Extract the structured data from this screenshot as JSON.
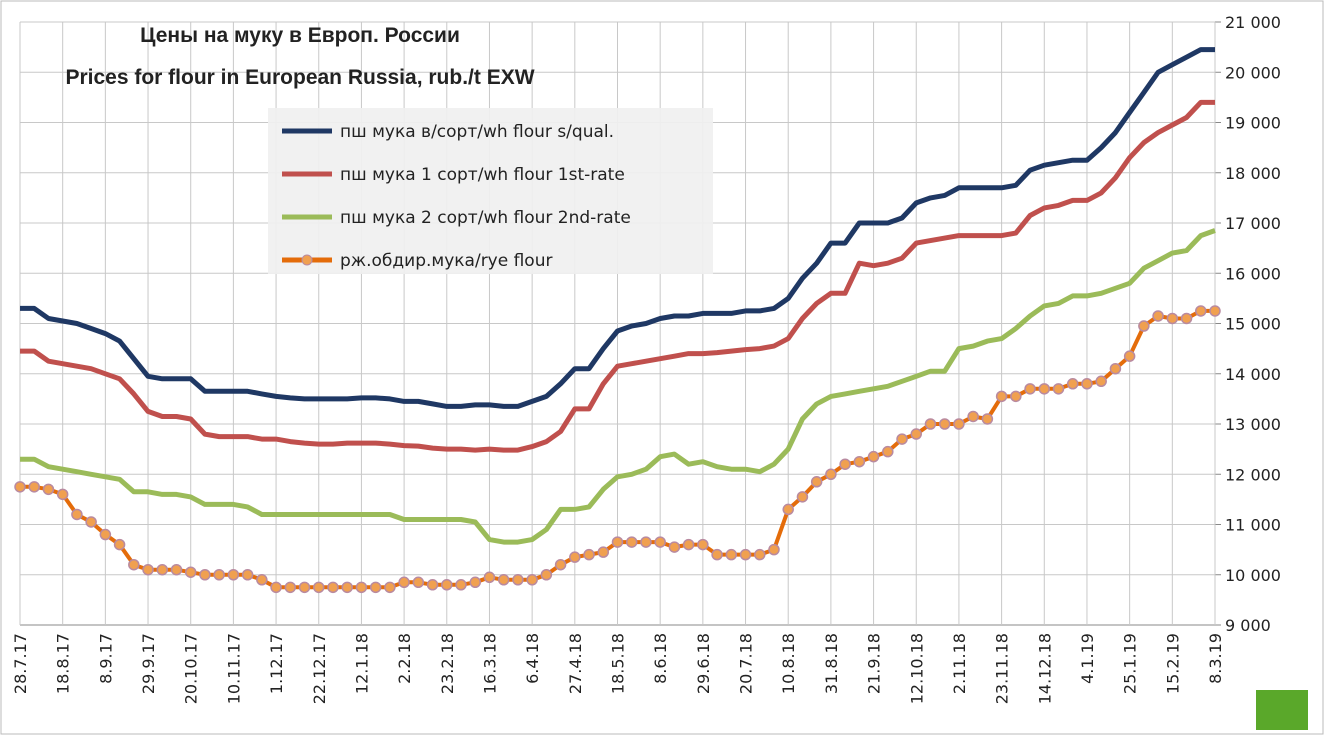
{
  "chart_data": {
    "type": "line",
    "title": "Цены на муку в Европ. России",
    "subtitle": "Prices for flour in European Russia, rub./t EXW",
    "categories": [
      "28.7.17",
      null,
      null,
      "18.8.17",
      null,
      null,
      "8.9.17",
      null,
      null,
      "29.9.17",
      null,
      null,
      "20.10.17",
      null,
      null,
      "10.11.17",
      null,
      null,
      "1.12.17",
      null,
      null,
      "22.12.17",
      null,
      null,
      "12.1.18",
      null,
      null,
      "2.2.18",
      null,
      null,
      "23.2.18",
      null,
      null,
      "16.3.18",
      null,
      null,
      "6.4.18",
      null,
      null,
      "27.4.18",
      null,
      null,
      "18.5.18",
      null,
      null,
      "8.6.18",
      null,
      null,
      "29.6.18",
      null,
      null,
      "20.7.18",
      null,
      null,
      "10.8.18",
      null,
      null,
      "31.8.18",
      null,
      null,
      "21.9.18",
      null,
      null,
      "12.10.18",
      null,
      null,
      "2.11.18",
      null,
      null,
      "23.11.18",
      null,
      null,
      "14.12.18",
      null,
      null,
      "4.1.19",
      null,
      null,
      "25.1.19",
      null,
      null,
      "15.2.19",
      null,
      null,
      "8.3.19"
    ],
    "series": [
      {
        "name": "пш мука  в/сорт/wh  flour s/qual.",
        "color": "#1f3864",
        "values": [
          15300,
          15300,
          15100,
          15050,
          15000,
          14900,
          14800,
          14650,
          14300,
          13950,
          13900,
          13900,
          13900,
          13650,
          13650,
          13650,
          13650,
          13600,
          13550,
          13520,
          13500,
          13500,
          13500,
          13500,
          13520,
          13520,
          13500,
          13450,
          13450,
          13400,
          13350,
          13350,
          13380,
          13380,
          13350,
          13350,
          13450,
          13550,
          13800,
          14100,
          14100,
          14500,
          14850,
          14950,
          15000,
          15100,
          15150,
          15150,
          15200,
          15200,
          15200,
          15250,
          15250,
          15300,
          15500,
          15900,
          16200,
          16600,
          16600,
          17000,
          17000,
          17000,
          17100,
          17400,
          17500,
          17550,
          17700,
          17700,
          17700,
          17700,
          17750,
          18050,
          18150,
          18200,
          18250,
          18250,
          18500,
          18800,
          19200,
          19600,
          20000,
          20150,
          20300,
          20450,
          20450
        ]
      },
      {
        "name": "пш мука  1 сорт/wh flour  1st-rate",
        "color": "#c0504d",
        "values": [
          14450,
          14450,
          14250,
          14200,
          14150,
          14100,
          14000,
          13900,
          13600,
          13250,
          13150,
          13150,
          13100,
          12800,
          12750,
          12750,
          12750,
          12700,
          12700,
          12650,
          12620,
          12600,
          12600,
          12620,
          12620,
          12620,
          12600,
          12570,
          12560,
          12520,
          12500,
          12500,
          12480,
          12500,
          12480,
          12480,
          12550,
          12650,
          12850,
          13300,
          13300,
          13800,
          14150,
          14200,
          14250,
          14300,
          14350,
          14400,
          14400,
          14420,
          14450,
          14480,
          14500,
          14550,
          14700,
          15100,
          15400,
          15600,
          15600,
          16200,
          16150,
          16200,
          16300,
          16600,
          16650,
          16700,
          16750,
          16750,
          16750,
          16750,
          16800,
          17150,
          17300,
          17350,
          17450,
          17450,
          17600,
          17900,
          18300,
          18600,
          18800,
          18950,
          19100,
          19400,
          19400
        ]
      },
      {
        "name": "пш мука  2 сорт/wh flour  2nd-rate",
        "color": "#9bbb59",
        "values": [
          12300,
          12300,
          12150,
          12100,
          12050,
          12000,
          11950,
          11900,
          11650,
          11650,
          11600,
          11600,
          11550,
          11400,
          11400,
          11400,
          11350,
          11200,
          11200,
          11200,
          11200,
          11200,
          11200,
          11200,
          11200,
          11200,
          11200,
          11100,
          11100,
          11100,
          11100,
          11100,
          11050,
          10700,
          10650,
          10650,
          10700,
          10900,
          11300,
          11300,
          11350,
          11700,
          11950,
          12000,
          12100,
          12350,
          12400,
          12200,
          12250,
          12150,
          12100,
          12100,
          12050,
          12200,
          12500,
          13100,
          13400,
          13550,
          13600,
          13650,
          13700,
          13750,
          13850,
          13950,
          14050,
          14050,
          14500,
          14550,
          14650,
          14700,
          14900,
          15150,
          15350,
          15400,
          15550,
          15550,
          15600,
          15700,
          15800,
          16100,
          16250,
          16400,
          16450,
          16750,
          16850
        ]
      },
      {
        "name": "рж.обдир.мука/rye  flour",
        "color": "#e46c0a",
        "values": [
          11750,
          11750,
          11700,
          11600,
          11200,
          11050,
          10800,
          10600,
          10200,
          10100,
          10100,
          10100,
          10050,
          10000,
          10000,
          10000,
          10000,
          9900,
          9750,
          9750,
          9750,
          9750,
          9750,
          9750,
          9750,
          9750,
          9750,
          9850,
          9850,
          9800,
          9800,
          9800,
          9850,
          9950,
          9900,
          9900,
          9900,
          10000,
          10200,
          10350,
          10400,
          10450,
          10650,
          10650,
          10650,
          10650,
          10550,
          10600,
          10600,
          10400,
          10400,
          10400,
          10400,
          10500,
          11300,
          11550,
          11850,
          12000,
          12200,
          12250,
          12350,
          12450,
          12700,
          12800,
          13000,
          13000,
          13000,
          13150,
          13100,
          13550,
          13550,
          13700,
          13700,
          13700,
          13800,
          13800,
          13850,
          14100,
          14350,
          14950,
          15150,
          15100,
          15100,
          15250,
          15250
        ]
      }
    ],
    "ylim": [
      9000,
      21000
    ],
    "yticks": [
      {
        "value": 9000,
        "label": "9 000"
      },
      {
        "value": 10000,
        "label": "10 000"
      },
      {
        "value": 11000,
        "label": "11 000"
      },
      {
        "value": 12000,
        "label": "12 000"
      },
      {
        "value": 13000,
        "label": "13 000"
      },
      {
        "value": 14000,
        "label": "14 000"
      },
      {
        "value": 15000,
        "label": "15 000"
      },
      {
        "value": 16000,
        "label": "16 000"
      },
      {
        "value": 17000,
        "label": "17 000"
      },
      {
        "value": 18000,
        "label": "18 000"
      },
      {
        "value": 19000,
        "label": "19 000"
      },
      {
        "value": 20000,
        "label": "20 000"
      },
      {
        "value": 21000,
        "label": "21 000"
      }
    ],
    "grid": true
  }
}
